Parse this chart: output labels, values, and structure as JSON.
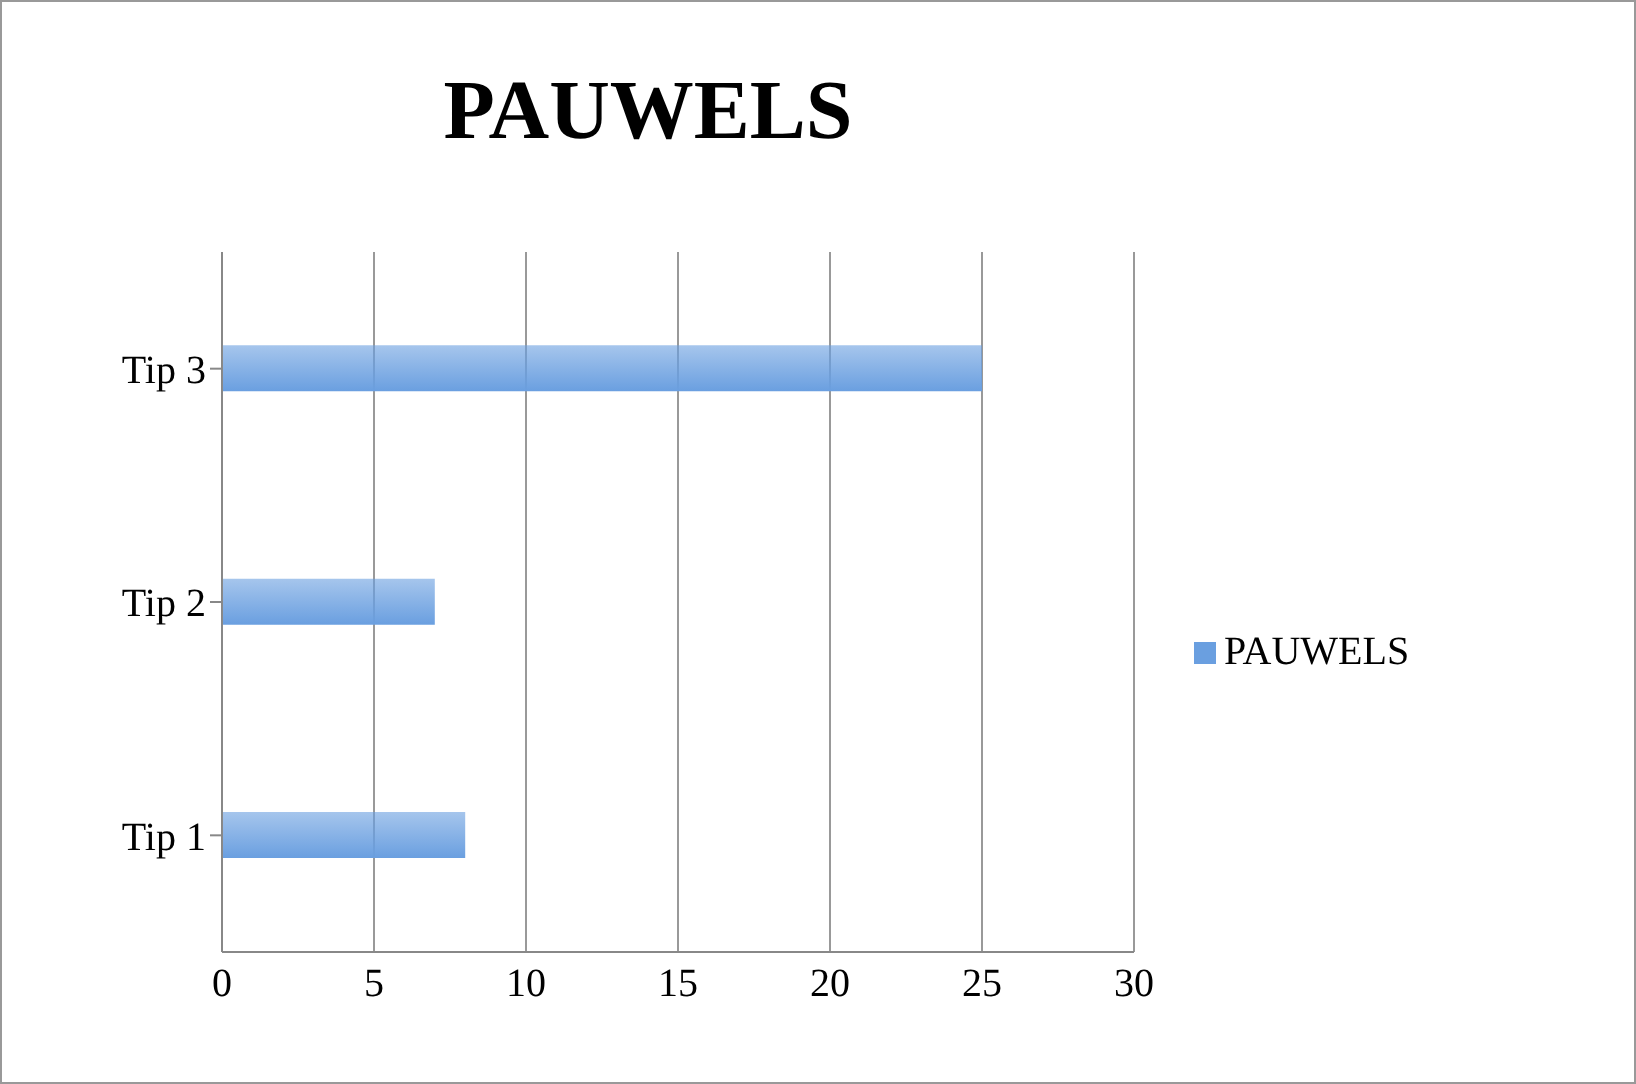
{
  "chart_data": {
    "type": "bar",
    "orientation": "horizontal",
    "title": "PAUWELS",
    "categories": [
      "Tip 3",
      "Tip 2",
      "Tip 1"
    ],
    "series": [
      {
        "name": "PAUWELS",
        "color": "#6a9fe0",
        "values": [
          25,
          7,
          8
        ]
      }
    ],
    "xlim": [
      0,
      30
    ],
    "xticks": [
      0,
      5,
      10,
      15,
      20,
      25,
      30
    ],
    "grid": "x",
    "legend": "right"
  }
}
